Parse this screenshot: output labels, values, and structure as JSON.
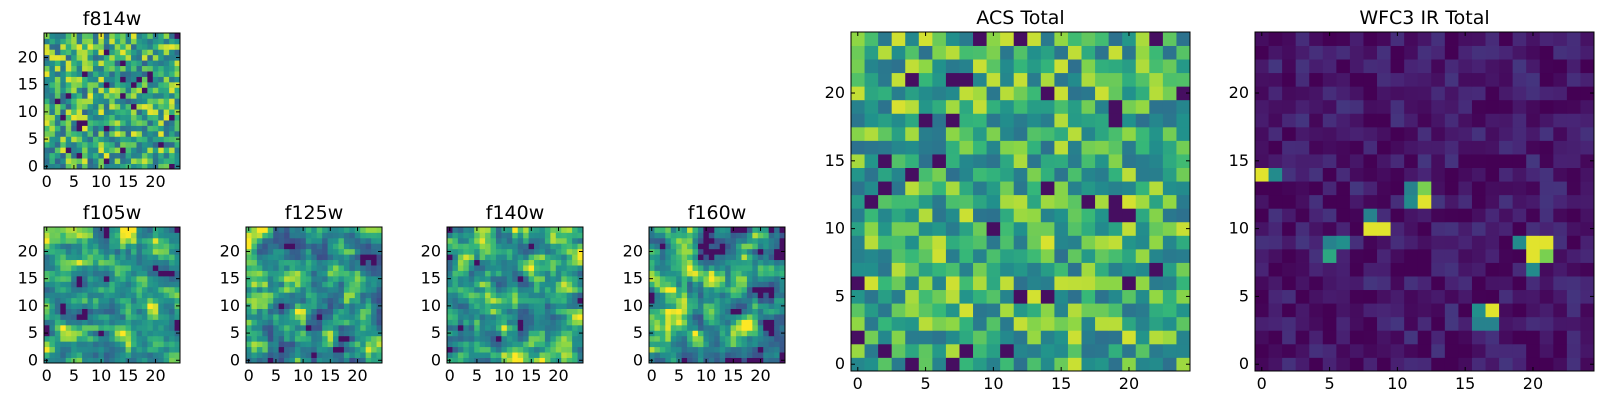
{
  "chart_data": [
    {
      "type": "heatmap",
      "title": "f814w",
      "nx": 25,
      "ny": 25,
      "xlim": [
        0,
        25
      ],
      "ylim": [
        0,
        25
      ],
      "colormap": "viridis",
      "xticks": [
        0,
        5,
        10,
        15,
        20
      ],
      "yticks": [
        0,
        5,
        10,
        15,
        20
      ],
      "pattern": "noise",
      "seed": 11,
      "base": 0.68,
      "amp": 0.3
    },
    {
      "type": "heatmap",
      "title": "f105w",
      "nx": 25,
      "ny": 25,
      "xlim": [
        0,
        25
      ],
      "ylim": [
        0,
        25
      ],
      "colormap": "viridis",
      "xticks": [
        0,
        5,
        10,
        15,
        20
      ],
      "yticks": [
        0,
        5,
        10,
        15,
        20
      ],
      "pattern": "smooth",
      "seed": 23,
      "base": 0.66,
      "amp": 0.3
    },
    {
      "type": "heatmap",
      "title": "f125w",
      "nx": 25,
      "ny": 25,
      "xlim": [
        0,
        25
      ],
      "ylim": [
        0,
        25
      ],
      "colormap": "viridis",
      "xticks": [
        0,
        5,
        10,
        15,
        20
      ],
      "yticks": [
        0,
        5,
        10,
        15,
        20
      ],
      "pattern": "smooth",
      "seed": 37,
      "base": 0.6,
      "amp": 0.35
    },
    {
      "type": "heatmap",
      "title": "f140w",
      "nx": 25,
      "ny": 25,
      "xlim": [
        0,
        25
      ],
      "ylim": [
        0,
        25
      ],
      "colormap": "viridis",
      "xticks": [
        0,
        5,
        10,
        15,
        20
      ],
      "yticks": [
        0,
        5,
        10,
        15,
        20
      ],
      "pattern": "smooth",
      "seed": 41,
      "base": 0.66,
      "amp": 0.32
    },
    {
      "type": "heatmap",
      "title": "f160w",
      "nx": 25,
      "ny": 25,
      "xlim": [
        0,
        25
      ],
      "ylim": [
        0,
        25
      ],
      "colormap": "viridis",
      "xticks": [
        0,
        5,
        10,
        15,
        20
      ],
      "yticks": [
        0,
        5,
        10,
        15,
        20
      ],
      "pattern": "smooth",
      "seed": 53,
      "base": 0.63,
      "amp": 0.34
    },
    {
      "type": "heatmap",
      "title": "ACS Total",
      "nx": 25,
      "ny": 25,
      "xlim": [
        0,
        25
      ],
      "ylim": [
        0,
        25
      ],
      "colormap": "viridis",
      "xticks": [
        0,
        5,
        10,
        15,
        20
      ],
      "yticks": [
        0,
        5,
        10,
        15,
        20
      ],
      "pattern": "noise",
      "seed": 67,
      "base": 0.7,
      "amp": 0.26
    },
    {
      "type": "heatmap",
      "title": "WFC3 IR Total",
      "nx": 25,
      "ny": 25,
      "xlim": [
        0,
        25
      ],
      "ylim": [
        0,
        25
      ],
      "colormap": "viridis",
      "xticks": [
        0,
        5,
        10,
        15,
        20
      ],
      "yticks": [
        0,
        5,
        10,
        15,
        20
      ],
      "pattern": "dark",
      "seed": 79,
      "base": 0.08,
      "amp": 0.12,
      "hotspots": [
        {
          "x": 0,
          "y": 14,
          "v": 0.97
        },
        {
          "x": 1,
          "y": 14,
          "v": 0.6
        },
        {
          "x": 11,
          "y": 12,
          "v": 0.6
        },
        {
          "x": 12,
          "y": 12,
          "v": 0.97
        },
        {
          "x": 11,
          "y": 13,
          "v": 0.55
        },
        {
          "x": 12,
          "y": 13,
          "v": 0.85
        },
        {
          "x": 8,
          "y": 10,
          "v": 0.97
        },
        {
          "x": 9,
          "y": 10,
          "v": 0.97
        },
        {
          "x": 8,
          "y": 11,
          "v": 0.55
        },
        {
          "x": 5,
          "y": 9,
          "v": 0.55
        },
        {
          "x": 6,
          "y": 9,
          "v": 0.62
        },
        {
          "x": 5,
          "y": 8,
          "v": 0.7
        },
        {
          "x": 19,
          "y": 9,
          "v": 0.6
        },
        {
          "x": 20,
          "y": 9,
          "v": 0.97
        },
        {
          "x": 21,
          "y": 9,
          "v": 0.97
        },
        {
          "x": 20,
          "y": 8,
          "v": 0.97
        },
        {
          "x": 21,
          "y": 8,
          "v": 0.85
        },
        {
          "x": 20,
          "y": 7,
          "v": 0.6
        },
        {
          "x": 16,
          "y": 4,
          "v": 0.62
        },
        {
          "x": 17,
          "y": 4,
          "v": 0.97
        },
        {
          "x": 16,
          "y": 3,
          "v": 0.55
        },
        {
          "x": 17,
          "y": 3,
          "v": 0.55
        }
      ]
    }
  ]
}
